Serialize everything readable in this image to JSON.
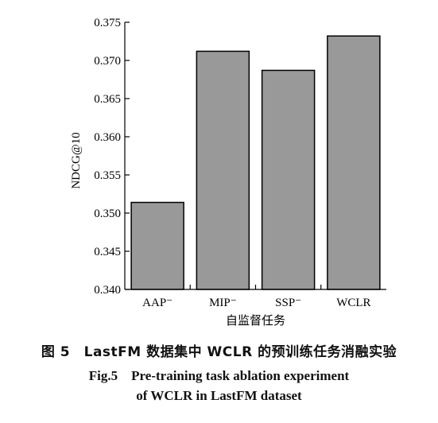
{
  "chart_data": {
    "type": "bar",
    "categories": [
      "AAP⁻",
      "MIP⁻",
      "SSP⁻",
      "WCLR"
    ],
    "values": [
      0.3514,
      0.3712,
      0.3687,
      0.3732
    ],
    "ylabel": "NDCG@10",
    "xlabel": "自监督任务",
    "ylim": [
      0.34,
      0.375
    ],
    "yticks": [
      "0.340",
      "0.345",
      "0.350",
      "0.355",
      "0.360",
      "0.365",
      "0.370",
      "0.375"
    ],
    "bar_color": "#999999",
    "grid": false
  },
  "caption": {
    "cn": "图 5　LastFM 数据集中 WCLR 的预训练任务消融实验",
    "en_line1": "Fig.5　Pre-training task ablation experiment",
    "en_line2": "of WCLR in LastFM dataset"
  }
}
